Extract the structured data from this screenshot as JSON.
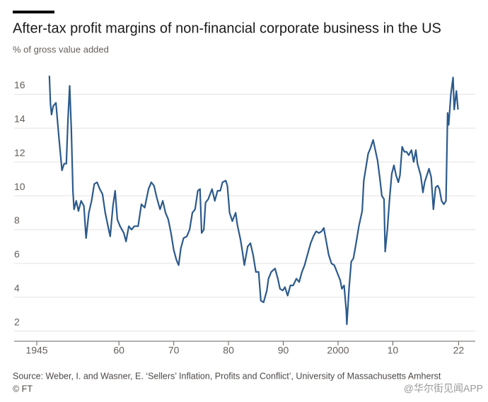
{
  "chart_data": {
    "type": "line",
    "title": "After-tax profit margins of non-financial corporate business in the US",
    "subtitle": "% of gross value added",
    "source": "Source: Weber, I. and Wasner, E. ‘Sellers’ Inflation, Profits and Conflict’, University of Massachusetts Amherst",
    "credit": "© FT",
    "watermark": "@华尔街见闻APP",
    "xlim": [
      1945,
      2023.5
    ],
    "xticks": [
      1945,
      {
        "value": 1960,
        "label": "60"
      },
      {
        "value": 1970,
        "label": "70"
      },
      {
        "value": 1980,
        "label": "80"
      },
      {
        "value": 1990,
        "label": "90"
      },
      2000,
      {
        "value": 2010,
        "label": "10"
      },
      {
        "value": 2022,
        "label": "22"
      }
    ],
    "ylim": [
      1.4,
      17.4
    ],
    "yticks": [
      2,
      4,
      6,
      8,
      10,
      12,
      14,
      16
    ],
    "grid": true,
    "x": [
      1947.3,
      1947.5,
      1947.7,
      1948,
      1948.5,
      1949,
      1949.6,
      1950,
      1950.4,
      1950.7,
      1951,
      1951.3,
      1951.6,
      1951.8,
      1952.2,
      1952.6,
      1953.1,
      1953.6,
      1954,
      1954.5,
      1955,
      1955.5,
      1956,
      1956.5,
      1957,
      1957.5,
      1958,
      1958.4,
      1958.9,
      1959.3,
      1959.7,
      1960.2,
      1960.9,
      1961.3,
      1961.8,
      1962.3,
      1962.8,
      1963.5,
      1964.1,
      1964.7,
      1965.4,
      1965.9,
      1966.4,
      1966.9,
      1967.5,
      1968,
      1968.5,
      1969,
      1969.5,
      1970,
      1970.5,
      1970.9,
      1971.3,
      1971.8,
      1972.4,
      1972.9,
      1973.4,
      1973.9,
      1974.4,
      1974.8,
      1975.1,
      1975.5,
      1975.8,
      1976.3,
      1977,
      1977.5,
      1978,
      1978.5,
      1978.9,
      1979.5,
      1979.8,
      1980.2,
      1980.7,
      1981.3,
      1981.6,
      1982.2,
      1982.5,
      1982.9,
      1983.5,
      1984,
      1984.5,
      1985,
      1985.5,
      1985.9,
      1986.4,
      1987,
      1987.3,
      1987.8,
      1988.5,
      1989,
      1989.4,
      1989.9,
      1990.3,
      1990.8,
      1991.3,
      1991.8,
      1992.4,
      1992.9,
      1993.4,
      1993.9,
      1994.4,
      1995,
      1995.5,
      1996,
      1996.5,
      1997,
      1997.4,
      1997.8,
      1998.3,
      1998.8,
      1999.3,
      1999.8,
      2000.4,
      2000.7,
      2001.1,
      2001.5,
      2001.6,
      2002,
      2002.4,
      2002.8,
      2003.3,
      2003.8,
      2004.4,
      2004.7,
      2005.1,
      2005.5,
      2005.9,
      2006.4,
      2006.8,
      2007.2,
      2007.6,
      2008,
      2008.4,
      2008.6,
      2009,
      2009.4,
      2009.8,
      2010.2,
      2010.6,
      2011,
      2011.3,
      2011.7,
      2012.1,
      2012.5,
      2012.9,
      2013.4,
      2013.8,
      2014.2,
      2014.5,
      2015.1,
      2015.5,
      2015.8,
      2016.2,
      2016.6,
      2017,
      2017.4,
      2017.8,
      2018.2,
      2018.5,
      2018.9,
      2019.3,
      2019.7,
      2020,
      2020.2,
      2020.6,
      2021,
      2021.2,
      2021.6,
      2021.9
    ],
    "series": [
      {
        "name": "Profit margin",
        "color": "#2c5a8c",
        "values": [
          17.1,
          15.4,
          14.8,
          15.3,
          15.5,
          13.6,
          11.5,
          11.9,
          11.9,
          14.5,
          16.5,
          14,
          10.3,
          9.2,
          9.7,
          9.1,
          9.7,
          9.4,
          7.5,
          9,
          9.7,
          10.7,
          10.8,
          10.4,
          10.1,
          9,
          8.2,
          7.6,
          9.4,
          10.3,
          8.6,
          8.2,
          7.8,
          7.3,
          8.2,
          8,
          8.2,
          8.2,
          9.5,
          9.3,
          10.4,
          10.8,
          10.6,
          9.9,
          9.2,
          9.7,
          9,
          8.6,
          7.8,
          6.8,
          6.2,
          5.9,
          6.9,
          7.5,
          7.6,
          8,
          9,
          9.2,
          10.3,
          10.4,
          7.8,
          8,
          9.6,
          9.8,
          10.4,
          9.7,
          10.3,
          10.3,
          10.8,
          10.9,
          10.6,
          9,
          8.5,
          9,
          8.3,
          7.4,
          6.8,
          5.9,
          7,
          7.2,
          6.5,
          5.5,
          5.5,
          3.8,
          3.7,
          4.4,
          5.1,
          5.5,
          5.7,
          5.1,
          4.5,
          4.4,
          4.6,
          4.1,
          4.7,
          4.7,
          5.1,
          4.9,
          5.5,
          5.9,
          6.5,
          7.2,
          7.6,
          7.9,
          7.8,
          7.9,
          8.1,
          7.4,
          6.5,
          6,
          5.9,
          5.5,
          5,
          4.5,
          4.7,
          3.2,
          2.4,
          4.5,
          6.1,
          6.3,
          7.2,
          8.2,
          9.1,
          10.9,
          11.7,
          12.5,
          12.8,
          13.3,
          12.7,
          12.1,
          11.1,
          10,
          9.8,
          6.7,
          8,
          9.8,
          11.3,
          11.8,
          11.2,
          10.8,
          11.2,
          12.9,
          12.6,
          12.6,
          12.4,
          12.7,
          12,
          12.7,
          11.9,
          11.2,
          10.2,
          10.8,
          11.2,
          11.6,
          11.1,
          9.2,
          10.5,
          10.6,
          10.4,
          9.7,
          9.5,
          9.7,
          14.9,
          14.2,
          16,
          17,
          15.1,
          16.2,
          15.1
        ]
      }
    ]
  }
}
